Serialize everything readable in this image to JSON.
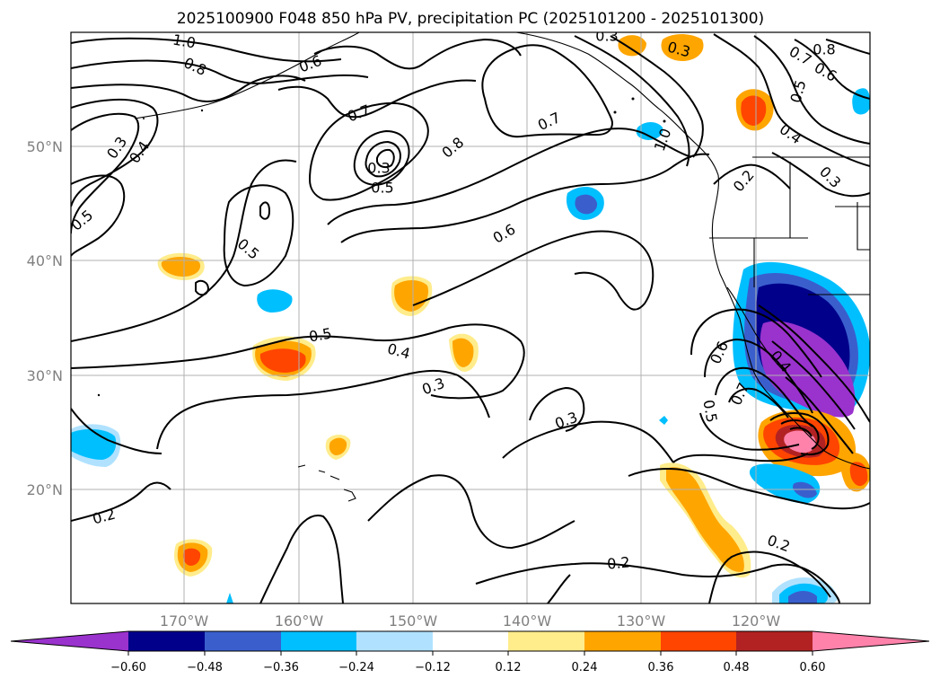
{
  "chart_data": {
    "type": "map",
    "title": "2025100900 F048 850 hPa PV, precipitation PC (2025101200 - 2025101300)",
    "projection": "PlateCarree",
    "extent": {
      "lon": [
        -180,
        -110
      ],
      "lat": [
        10,
        60
      ]
    },
    "lat_ticks": [
      {
        "label": "20°N",
        "value": 20
      },
      {
        "label": "30°N",
        "value": 30
      },
      {
        "label": "40°N",
        "value": 40
      },
      {
        "label": "50°N",
        "value": 50
      }
    ],
    "lon_ticks": [
      {
        "label": "170°W",
        "value": -170
      },
      {
        "label": "160°W",
        "value": -160
      },
      {
        "label": "150°W",
        "value": -150
      },
      {
        "label": "140°W",
        "value": -140
      },
      {
        "label": "130°W",
        "value": -130
      },
      {
        "label": "120°W",
        "value": -120
      }
    ],
    "contour_field": "850 hPa PV",
    "contour_labels": [
      {
        "text": "1.0",
        "lon": -170,
        "lat": 59.8
      },
      {
        "text": "0.8",
        "lon": -169,
        "lat": 57.1
      },
      {
        "text": "0.6",
        "lon": -158.9,
        "lat": 57.3
      },
      {
        "text": "0.7",
        "lon": -154.7,
        "lat": 52.9
      },
      {
        "text": "0.3",
        "lon": -176,
        "lat": 49.8
      },
      {
        "text": "0.4",
        "lon": -174,
        "lat": 49.4
      },
      {
        "text": "0.5",
        "lon": -179,
        "lat": 43.4
      },
      {
        "text": "0.5",
        "lon": -166,
        "lat": 38.9
      },
      {
        "text": "0.3",
        "lon": -151.2,
        "lat": 48.4
      },
      {
        "text": "0.5",
        "lon": -151.2,
        "lat": 46.3
      },
      {
        "text": "0.8",
        "lon": -144.2,
        "lat": 49.8
      },
      {
        "text": "0.7",
        "lon": -133.6,
        "lat": 52.1
      },
      {
        "text": "0.6",
        "lon": -142,
        "lat": 42.2
      },
      {
        "text": "0.3",
        "lon": -131.5,
        "lat": 60.1
      },
      {
        "text": "0.3",
        "lon": -126.6,
        "lat": 58.6
      },
      {
        "text": "0.8",
        "lon": -115.6,
        "lat": 58.6
      },
      {
        "text": "0.7",
        "lon": -116.1,
        "lat": 57.6
      },
      {
        "text": "0.6",
        "lon": -113.9,
        "lat": 57.2
      },
      {
        "text": "0.5",
        "lon": -116.4,
        "lat": 55.2
      },
      {
        "text": "0.4",
        "lon": -117.8,
        "lat": 51.1
      },
      {
        "text": "0.3",
        "lon": -114.3,
        "lat": 47.3
      },
      {
        "text": "0.2",
        "lon": -120.6,
        "lat": 47.1
      },
      {
        "text": "1.0",
        "lon": -126.6,
        "lat": 50.3
      },
      {
        "text": "0.5",
        "lon": -158.2,
        "lat": 33.8
      },
      {
        "text": "0.4",
        "lon": -151.8,
        "lat": 31.8
      },
      {
        "text": "0.3",
        "lon": -145.6,
        "lat": 28.8
      },
      {
        "text": "0.3",
        "lon": -136.2,
        "lat": 25.8
      },
      {
        "text": "0.6",
        "lon": -124.5,
        "lat": 31.9
      },
      {
        "text": "0.7",
        "lon": -122.7,
        "lat": 28.3
      },
      {
        "text": "0.5",
        "lon": -125.4,
        "lat": 26.8
      },
      {
        "text": "0.4",
        "lon": -119.2,
        "lat": 30.6
      },
      {
        "text": "0.2",
        "lon": -177.1,
        "lat": 17.6
      },
      {
        "text": "0.2",
        "lon": -133.2,
        "lat": 13.5
      },
      {
        "text": "0.2",
        "lon": -119.2,
        "lat": 15.2
      }
    ],
    "shading_field": "precipitation PC",
    "colorbar": {
      "ticks": [
        "−0.60",
        "−0.48",
        "−0.36",
        "−0.24",
        "−0.12",
        "0.12",
        "0.24",
        "0.36",
        "0.48",
        "0.60"
      ],
      "colors": [
        "#9a32cd",
        "#00008b",
        "#3a5fcd",
        "#00bfff",
        "#b0e2ff",
        "#ffffff",
        "#ffec8b",
        "#ffa500",
        "#ff4500",
        "#b22222",
        "#ff82ab"
      ],
      "extend": "both"
    },
    "gridlines": true
  }
}
